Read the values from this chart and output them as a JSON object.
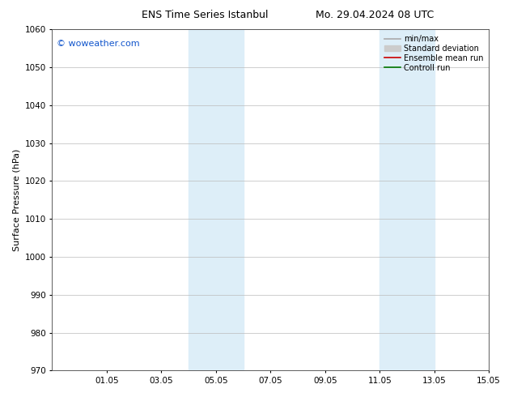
{
  "title_left": "ENS Time Series Istanbul",
  "title_right": "Mo. 29.04.2024 08 UTC",
  "ylabel": "Surface Pressure (hPa)",
  "ylim": [
    970,
    1060
  ],
  "yticks": [
    970,
    980,
    990,
    1000,
    1010,
    1020,
    1030,
    1040,
    1050,
    1060
  ],
  "xlim": [
    0,
    16
  ],
  "xtick_labels": [
    "01.05",
    "03.05",
    "05.05",
    "07.05",
    "09.05",
    "11.05",
    "13.05",
    "15.05"
  ],
  "xtick_positions": [
    2,
    4,
    6,
    8,
    10,
    12,
    14,
    16
  ],
  "shaded_bands": [
    {
      "x_start": 5,
      "x_end": 7,
      "color": "#ddeef8"
    },
    {
      "x_start": 12,
      "x_end": 14,
      "color": "#ddeef8"
    }
  ],
  "watermark": "© woweather.com",
  "watermark_color": "#1155cc",
  "legend_items": [
    {
      "label": "min/max",
      "color": "#aaaaaa",
      "lw": 1.2,
      "style": "-",
      "type": "line"
    },
    {
      "label": "Standard deviation",
      "color": "#cccccc",
      "lw": 7,
      "style": "-",
      "type": "patch"
    },
    {
      "label": "Ensemble mean run",
      "color": "#cc0000",
      "lw": 1.2,
      "style": "-",
      "type": "line"
    },
    {
      "label": "Controll run",
      "color": "#007700",
      "lw": 1.2,
      "style": "-",
      "type": "line"
    }
  ],
  "background_color": "#ffffff",
  "plot_bg_color": "#ffffff",
  "grid_color": "#bbbbbb",
  "title_fontsize": 9,
  "ylabel_fontsize": 8,
  "tick_fontsize": 7.5
}
